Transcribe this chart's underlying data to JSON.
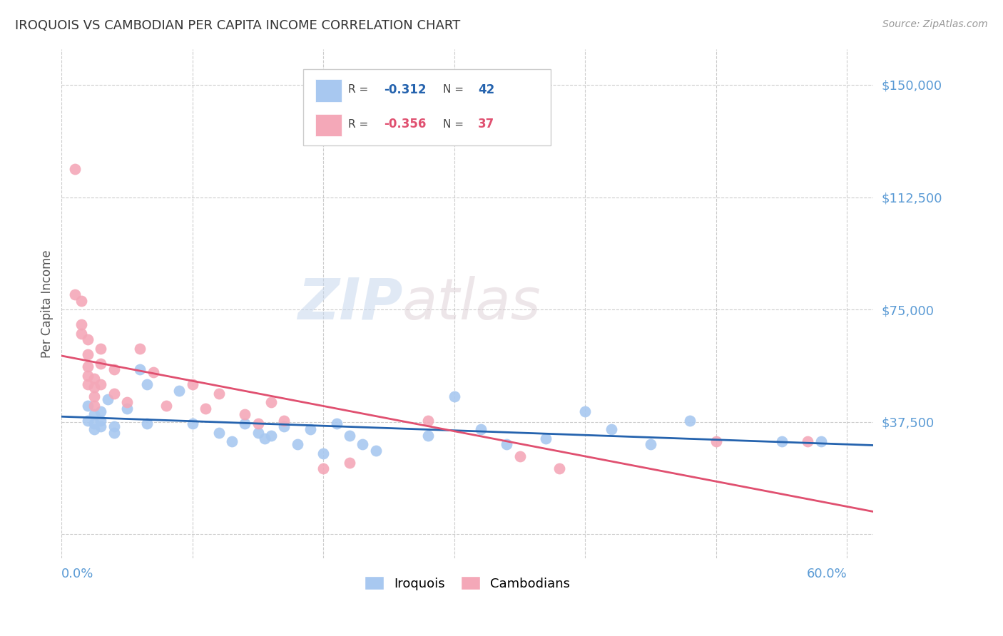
{
  "title": "IROQUOIS VS CAMBODIAN PER CAPITA INCOME CORRELATION CHART",
  "source": "Source: ZipAtlas.com",
  "ylabel": "Per Capita Income",
  "yticks": [
    0,
    37500,
    75000,
    112500,
    150000
  ],
  "ytick_labels": [
    "",
    "$37,500",
    "$75,000",
    "$112,500",
    "$150,000"
  ],
  "xlim": [
    0.0,
    0.62
  ],
  "ylim": [
    -8000,
    162000
  ],
  "watermark_zip": "ZIP",
  "watermark_atlas": "atlas",
  "legend_blue_r": "-0.312",
  "legend_blue_n": "42",
  "legend_pink_r": "-0.356",
  "legend_pink_n": "37",
  "legend_blue_label": "Iroquois",
  "legend_pink_label": "Cambodians",
  "blue_color": "#A8C8F0",
  "pink_color": "#F4A8B8",
  "trendline_blue_color": "#2563AE",
  "trendline_pink_color": "#E05070",
  "axis_label_color": "#5B9BD5",
  "title_color": "#333333",
  "grid_color": "#CCCCCC",
  "iroquois_x": [
    0.02,
    0.02,
    0.025,
    0.025,
    0.025,
    0.03,
    0.03,
    0.03,
    0.035,
    0.04,
    0.04,
    0.05,
    0.06,
    0.065,
    0.065,
    0.09,
    0.1,
    0.12,
    0.13,
    0.14,
    0.15,
    0.155,
    0.16,
    0.17,
    0.18,
    0.19,
    0.2,
    0.21,
    0.22,
    0.23,
    0.24,
    0.28,
    0.3,
    0.32,
    0.34,
    0.37,
    0.4,
    0.42,
    0.45,
    0.48,
    0.55,
    0.58
  ],
  "iroquois_y": [
    43000,
    38000,
    40000,
    37000,
    35000,
    41000,
    38000,
    36000,
    45000,
    36000,
    34000,
    42000,
    55000,
    37000,
    50000,
    48000,
    37000,
    34000,
    31000,
    37000,
    34000,
    32000,
    33000,
    36000,
    30000,
    35000,
    27000,
    37000,
    33000,
    30000,
    28000,
    33000,
    46000,
    35000,
    30000,
    32000,
    41000,
    35000,
    30000,
    38000,
    31000,
    31000
  ],
  "cambodian_x": [
    0.01,
    0.01,
    0.015,
    0.015,
    0.015,
    0.02,
    0.02,
    0.02,
    0.02,
    0.02,
    0.025,
    0.025,
    0.025,
    0.025,
    0.03,
    0.03,
    0.03,
    0.04,
    0.04,
    0.05,
    0.06,
    0.07,
    0.08,
    0.1,
    0.11,
    0.12,
    0.14,
    0.15,
    0.16,
    0.17,
    0.2,
    0.22,
    0.28,
    0.35,
    0.38,
    0.5,
    0.57
  ],
  "cambodian_y": [
    122000,
    80000,
    78000,
    70000,
    67000,
    65000,
    60000,
    56000,
    53000,
    50000,
    52000,
    49000,
    46000,
    43000,
    62000,
    57000,
    50000,
    55000,
    47000,
    44000,
    62000,
    54000,
    43000,
    50000,
    42000,
    47000,
    40000,
    37000,
    44000,
    38000,
    22000,
    24000,
    38000,
    26000,
    22000,
    31000,
    31000
  ]
}
